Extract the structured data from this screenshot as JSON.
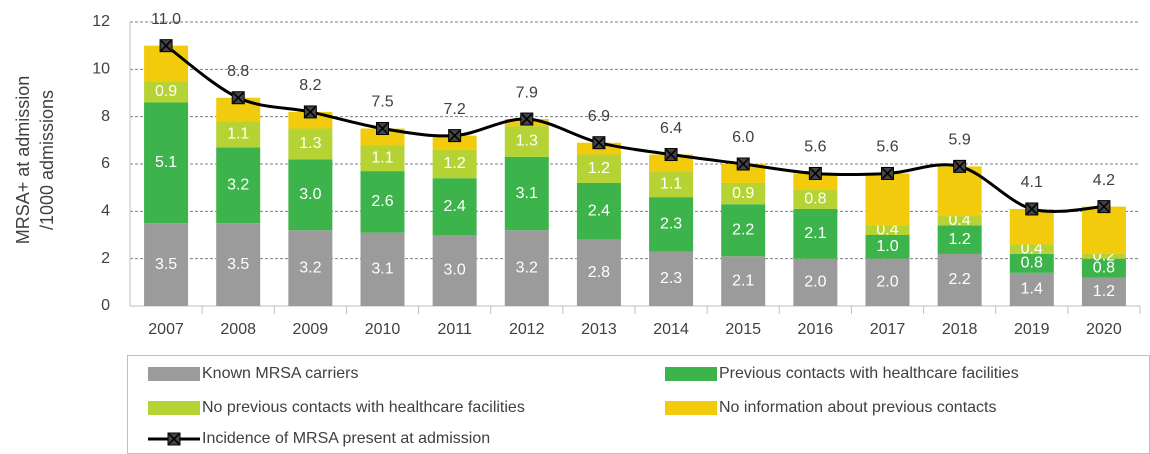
{
  "chart_data": {
    "type": "bar",
    "stacked": true,
    "y_label": [
      "MRSA+  at admission",
      "/1000 admissions"
    ],
    "categories": [
      "2007",
      "2008",
      "2009",
      "2010",
      "2011",
      "2012",
      "2013",
      "2014",
      "2015",
      "2016",
      "2017",
      "2018",
      "2019",
      "2020"
    ],
    "ylim": [
      0,
      12
    ],
    "yticks": [
      0,
      2,
      4,
      6,
      8,
      10,
      12
    ],
    "grid": true,
    "series": [
      {
        "name": "Known MRSA carriers",
        "color": "#9b9b9b",
        "values": [
          3.5,
          3.5,
          3.2,
          3.1,
          3,
          3.2,
          2.8,
          2.3,
          2.1,
          2,
          2,
          2.2,
          1.4,
          1.2
        ],
        "value_labels": [
          "3.5",
          "3.5",
          "3.2",
          "3.1",
          "3.0",
          "3.2",
          "2.8",
          "2.3",
          "2.1",
          "2.0",
          "2.0",
          "2.2",
          "1.4",
          "1.2"
        ]
      },
      {
        "name": "Previous contacts with healthcare facilities",
        "color": "#3cb44b",
        "values": [
          5.1,
          3.2,
          3,
          2.6,
          2.4,
          3.1,
          2.4,
          2.3,
          2.2,
          2.1,
          1,
          1.2,
          0.8,
          0.8
        ],
        "value_labels": [
          "5.1",
          "3.2",
          "3.0",
          "2.6",
          "2.4",
          "3.1",
          "2.4",
          "2.3",
          "2.2",
          "2.1",
          "1.0",
          "1.2",
          "0.8",
          "0.8"
        ]
      },
      {
        "name": "No previous contacts with healthcare facilities",
        "color": "#b5d334",
        "values": [
          0.9,
          1.1,
          1.3,
          1.1,
          1.2,
          1.3,
          1.2,
          1.1,
          0.9,
          0.8,
          0.4,
          0.4,
          0.4,
          0.2
        ],
        "value_labels": [
          "0.9",
          "1.1",
          "1.3",
          "1.1",
          "1.2",
          "1.3",
          "1.2",
          "1.1",
          "0.9",
          "0.8",
          "0.4",
          "0.4",
          "0.4",
          "0.2"
        ]
      },
      {
        "name": "No information about previous contacts",
        "color": "#f2cc0c",
        "values": [
          1.5,
          1,
          0.7,
          0.7,
          0.6,
          0.3,
          0.5,
          0.7,
          0.8,
          0.7,
          2.2,
          2.1,
          1.5,
          2
        ]
      },
      {
        "name": "Incidence of MRSA present at admission",
        "color": "#000000",
        "type": "line",
        "values": [
          11,
          8.8,
          8.2,
          7.5,
          7.2,
          7.9,
          6.9,
          6.4,
          6,
          5.6,
          5.6,
          5.9,
          4.1,
          4.2
        ],
        "value_labels": [
          "11.0",
          "8.8",
          "8.2",
          "7.5",
          "7.2",
          "7.9",
          "6.9",
          "6.4",
          "6.0",
          "5.6",
          "5.6",
          "5.9",
          "4.1",
          "4.2"
        ]
      }
    ]
  }
}
